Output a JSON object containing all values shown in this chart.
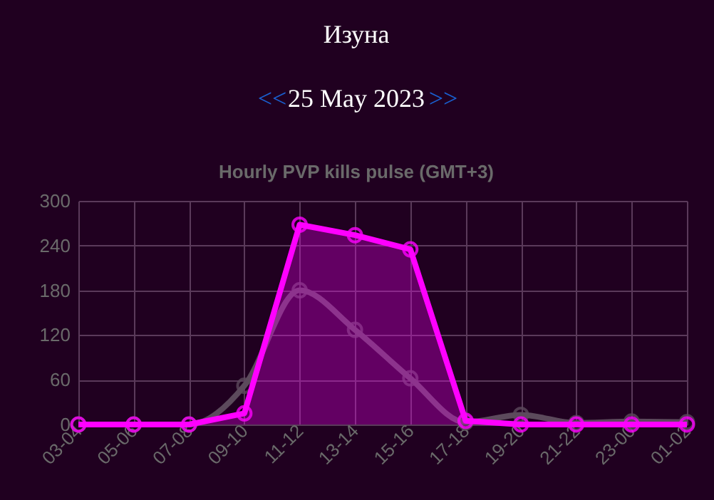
{
  "chart_data": {
    "type": "line",
    "title": "Hourly PVP kills pulse (GMT+3)",
    "annotations": [
      "Изуна",
      "<<",
      "25 May 2023",
      ">>"
    ],
    "categories": [
      "03-04",
      "05-06",
      "07-08",
      "09-10",
      "11-12",
      "13-14",
      "15-16",
      "17-18",
      "19-20",
      "21-22",
      "23-00",
      "01-02"
    ],
    "series": [
      {
        "color": "#5c4a5c",
        "values": [
          0,
          0,
          0,
          52,
          180,
          127,
          62,
          3,
          13,
          2,
          4,
          3
        ]
      },
      {
        "type": "area",
        "color": "#ff00ff",
        "values": [
          0,
          0,
          0,
          15,
          268,
          254,
          235,
          5,
          0,
          0,
          0,
          0
        ]
      }
    ],
    "ylim": [
      0,
      300
    ],
    "yticks": [
      0,
      60,
      120,
      180,
      240,
      300
    ],
    "grid": true,
    "marker": "circle"
  }
}
